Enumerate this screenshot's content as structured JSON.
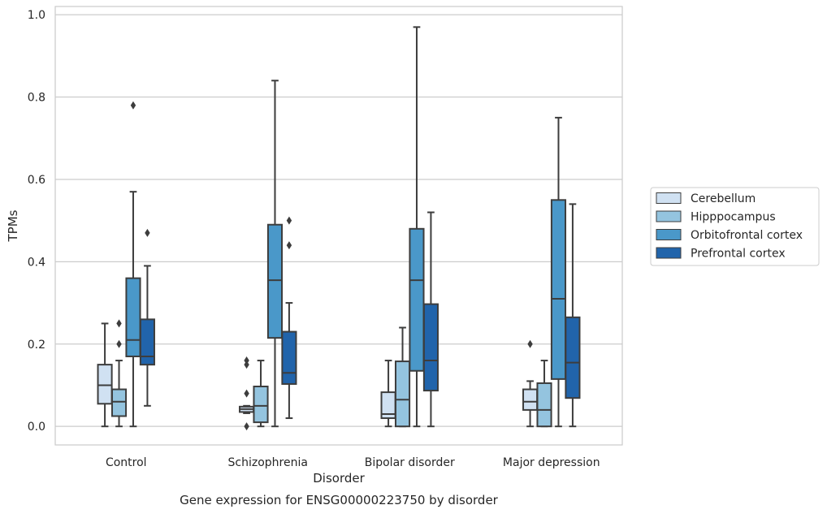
{
  "chart_data": {
    "type": "box",
    "title": "",
    "caption": "Gene expression for ENSG00000223750 by disorder",
    "xlabel": "Disorder",
    "ylabel": "TPMs",
    "ylim": [
      -0.045,
      1.02
    ],
    "yticks": [
      0.0,
      0.2,
      0.4,
      0.6,
      0.8,
      1.0
    ],
    "ytick_labels": [
      "0.0",
      "0.2",
      "0.4",
      "0.6",
      "0.8",
      "1.0"
    ],
    "grid": "horizontal",
    "legend_position": "right",
    "categories": [
      "Control",
      "Schizophrenia",
      "Bipolar disorder",
      "Major depression"
    ],
    "series": [
      {
        "name": "Cerebellum",
        "color": "#d0e1f2",
        "boxes": [
          {
            "whisker_low": 0.0,
            "q1": 0.055,
            "median": 0.1,
            "q3": 0.15,
            "whisker_high": 0.25,
            "outliers": []
          },
          {
            "whisker_low": 0.032,
            "q1": 0.035,
            "median": 0.042,
            "q3": 0.048,
            "whisker_high": 0.05,
            "outliers": [
              0.16,
              0.15,
              0.08,
              0.0
            ]
          },
          {
            "whisker_low": 0.0,
            "q1": 0.02,
            "median": 0.03,
            "q3": 0.083,
            "whisker_high": 0.16,
            "outliers": []
          },
          {
            "whisker_low": 0.0,
            "q1": 0.04,
            "median": 0.06,
            "q3": 0.09,
            "whisker_high": 0.11,
            "outliers": [
              0.2
            ]
          }
        ]
      },
      {
        "name": "Hipppocampus",
        "color": "#94c4df",
        "boxes": [
          {
            "whisker_low": 0.0,
            "q1": 0.025,
            "median": 0.06,
            "q3": 0.09,
            "whisker_high": 0.16,
            "outliers": [
              0.25,
              0.2
            ]
          },
          {
            "whisker_low": 0.0,
            "q1": 0.01,
            "median": 0.05,
            "q3": 0.097,
            "whisker_high": 0.16,
            "outliers": []
          },
          {
            "whisker_low": 0.0,
            "q1": 0.0,
            "median": 0.065,
            "q3": 0.158,
            "whisker_high": 0.24,
            "outliers": []
          },
          {
            "whisker_low": 0.0,
            "q1": 0.0,
            "median": 0.04,
            "q3": 0.105,
            "whisker_high": 0.16,
            "outliers": []
          }
        ]
      },
      {
        "name": "Orbitofrontal cortex",
        "color": "#4a98c9",
        "boxes": [
          {
            "whisker_low": 0.0,
            "q1": 0.17,
            "median": 0.21,
            "q3": 0.36,
            "whisker_high": 0.57,
            "outliers": [
              0.78
            ]
          },
          {
            "whisker_low": 0.0,
            "q1": 0.215,
            "median": 0.355,
            "q3": 0.49,
            "whisker_high": 0.84,
            "outliers": []
          },
          {
            "whisker_low": 0.0,
            "q1": 0.135,
            "median": 0.355,
            "q3": 0.48,
            "whisker_high": 0.97,
            "outliers": []
          },
          {
            "whisker_low": 0.0,
            "q1": 0.115,
            "median": 0.31,
            "q3": 0.55,
            "whisker_high": 0.75,
            "outliers": []
          }
        ]
      },
      {
        "name": "Prefrontal cortex",
        "color": "#2164ab",
        "boxes": [
          {
            "whisker_low": 0.05,
            "q1": 0.15,
            "median": 0.17,
            "q3": 0.26,
            "whisker_high": 0.39,
            "outliers": [
              0.47
            ]
          },
          {
            "whisker_low": 0.02,
            "q1": 0.103,
            "median": 0.13,
            "q3": 0.23,
            "whisker_high": 0.3,
            "outliers": [
              0.5,
              0.44
            ]
          },
          {
            "whisker_low": 0.0,
            "q1": 0.087,
            "median": 0.16,
            "q3": 0.297,
            "whisker_high": 0.52,
            "outliers": []
          },
          {
            "whisker_low": 0.0,
            "q1": 0.069,
            "median": 0.155,
            "q3": 0.265,
            "whisker_high": 0.54,
            "outliers": []
          }
        ]
      }
    ]
  }
}
